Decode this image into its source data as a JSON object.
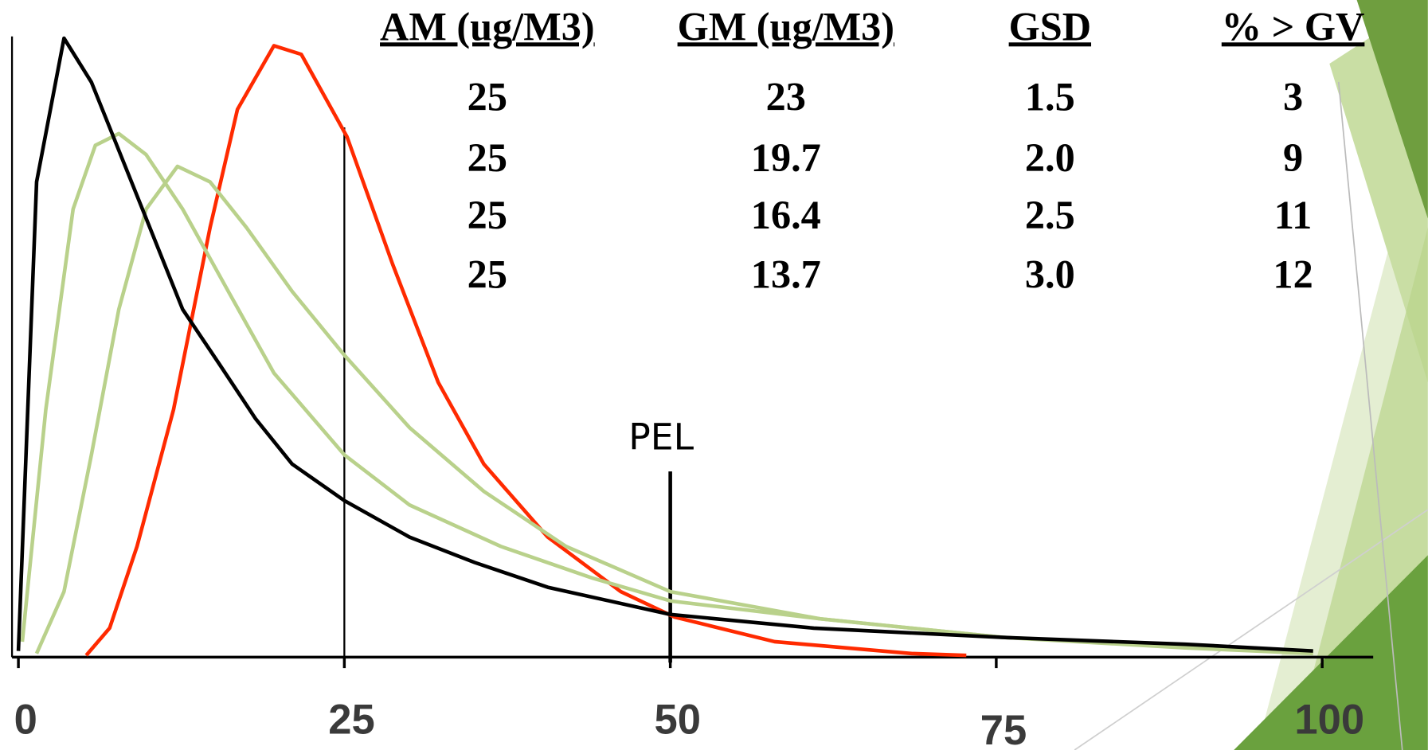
{
  "table": {
    "headers": [
      "AM (ug/M3)",
      "GM (ug/M3)",
      "GSD",
      "% > GV"
    ],
    "rows": [
      [
        "25",
        "23",
        "1.5",
        "3"
      ],
      [
        "25",
        "19.7",
        "2.0",
        "9"
      ],
      [
        "25",
        "16.4",
        "2.5",
        "11"
      ],
      [
        "25",
        "13.7",
        "3.0",
        "12"
      ]
    ]
  },
  "chart_data": {
    "type": "line",
    "xlim": [
      0,
      100
    ],
    "xticks": [
      0,
      25,
      50,
      75,
      100
    ],
    "ylim": [
      0,
      100
    ],
    "markers": [
      {
        "value": 25
      },
      {
        "value": 50,
        "label": "PEL"
      }
    ],
    "series": [
      {
        "color": "#ff2a00",
        "x": [
          5.2,
          7,
          9.1,
          11.9,
          14.7,
          16.8,
          19.6,
          21.7,
          25.2,
          28.7,
          32.2,
          35.7,
          40.6,
          46.2,
          50.3,
          58,
          68.5,
          72.7
        ],
        "values": [
          0,
          4.4,
          17.6,
          39.7,
          69.1,
          88.2,
          98.5,
          97.1,
          83.8,
          63.2,
          44.1,
          30.9,
          19.1,
          10.3,
          6.2,
          2.2,
          0.3,
          0
        ]
      },
      {
        "color": "#b9d18b",
        "x": [
          1.4,
          3.5,
          5.6,
          7.7,
          9.8,
          12.2,
          14.7,
          17.5,
          21,
          25,
          30,
          35.7,
          42,
          50,
          61.5,
          75.5,
          89.5,
          99.3
        ],
        "values": [
          0.3,
          10.3,
          32.4,
          55.9,
          72.1,
          79,
          76.5,
          69.1,
          58.8,
          48.5,
          36.8,
          26.5,
          17.6,
          10.3,
          5.9,
          2.9,
          1.2,
          0.3
        ]
      },
      {
        "color": "#b9d18b",
        "x": [
          0.3,
          2.1,
          4.2,
          5.9,
          7.7,
          9.8,
          12.6,
          16.1,
          19.6,
          25,
          30,
          37,
          44,
          50,
          61.5,
          75.5,
          89.5,
          99.3
        ],
        "values": [
          2.2,
          39.7,
          72.1,
          82.4,
          84.3,
          80.9,
          72.1,
          58.8,
          45.6,
          32.4,
          24.3,
          17.6,
          12.5,
          8.8,
          5.9,
          2.9,
          1.5,
          0.7
        ]
      },
      {
        "color": "#000000",
        "x": [
          0,
          1.4,
          3.5,
          5.6,
          7,
          9.8,
          12.6,
          15.4,
          18.2,
          21,
          25,
          30,
          35,
          40.6,
          50,
          61,
          75.5,
          89.5,
          99.3
        ],
        "values": [
          0.7,
          76.5,
          99.7,
          92.6,
          85.3,
          70.6,
          55.9,
          47.1,
          38.2,
          30.9,
          25,
          19.1,
          15,
          11,
          6.6,
          4.4,
          2.9,
          1.8,
          0.7
        ]
      }
    ]
  }
}
